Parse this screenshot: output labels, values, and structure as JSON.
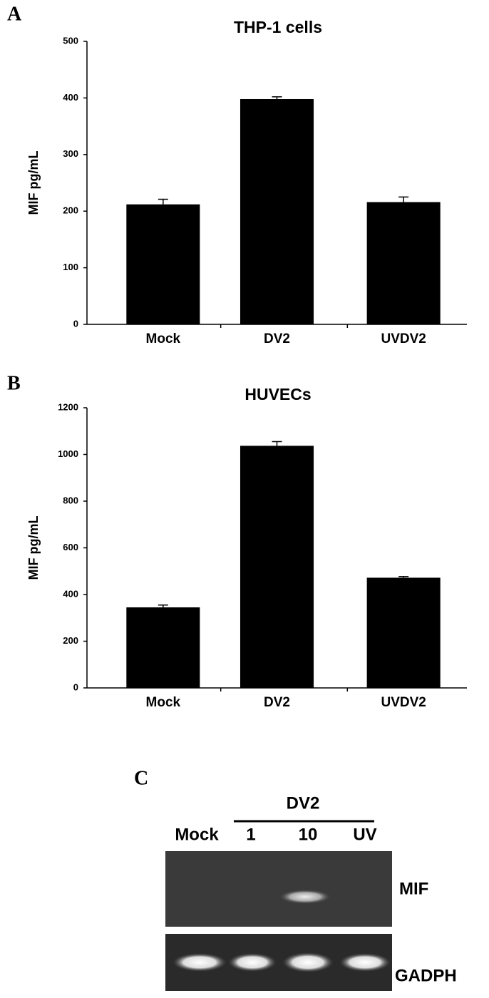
{
  "chart_data": [
    {
      "type": "bar",
      "panel": "A",
      "title": "THP-1 cells",
      "y_label": "MIF pg/mL",
      "categories": [
        "Mock",
        "DV2",
        "UVDV2"
      ],
      "values": [
        212,
        398,
        216
      ],
      "errors": [
        9,
        4,
        9
      ],
      "color": "#000000",
      "ylim": [
        0,
        500
      ],
      "yticks": [
        0,
        100,
        200,
        300,
        400,
        500
      ]
    },
    {
      "type": "bar",
      "panel": "B",
      "title": "HUVECs",
      "y_label": "MIF pg/mL",
      "categories": [
        "Mock",
        "DV2",
        "UVDV2"
      ],
      "values": [
        345,
        1037,
        472
      ],
      "errors": [
        10,
        18,
        5
      ],
      "color": "#000000",
      "ylim": [
        0,
        1200
      ],
      "yticks": [
        0,
        200,
        400,
        600,
        800,
        1000,
        1200
      ]
    }
  ],
  "gel": {
    "panel": "C",
    "group": "DV2",
    "lanes": [
      "Mock",
      "1",
      "10",
      "UV"
    ],
    "rows": [
      "MIF",
      "GADPH"
    ]
  }
}
